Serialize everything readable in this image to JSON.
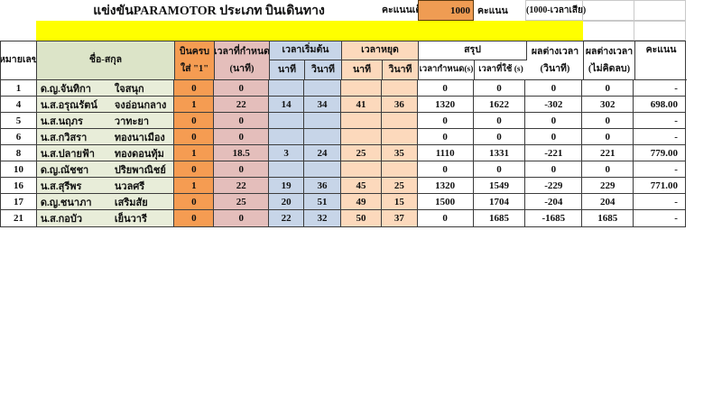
{
  "title_bar": {
    "title": "แข่งขันPARAMOTOR ประเภท บินเดินทาง",
    "full_score_label": "คะแนนเต็ม",
    "full_score_value": "1000",
    "score_unit": "คะแนน",
    "formula_note": "(1000-เวลาเสีย)"
  },
  "colors": {
    "highlight_band": "#ffff00",
    "complete_column": "#f59c52",
    "time_set_column": "#e4bebb",
    "start_column": "#c7d5e8",
    "stop_column": "#fcd9bc",
    "name_column": "#e8edd9",
    "full_score_cell": "#ef9c53"
  },
  "table": {
    "headers": {
      "number": "หมายเลข",
      "name": "ชื่อ-สกุล",
      "complete_line1": "บินครบ",
      "complete_line2": "ใส่ \"1\"",
      "time_set_line1": "เวลาที่กำหนด",
      "time_set_line2": "(นาที)",
      "start_time": "เวลาเริ่มต้น",
      "stop_time": "เวลาหยุด",
      "minute": "นาที",
      "second": "วินาที",
      "summary": "สรุป",
      "summary_set": "เวลากำหนด(s)",
      "summary_used": "เวลาที่ใช้ (s)",
      "diff_line1": "ผลต่างเวลา",
      "diff_line2": "(วินาที)",
      "diff_abs_line1": "ผลต่างเวลา",
      "diff_abs_line2": "(ไม่คิดลบ)",
      "score": "คะแนน"
    },
    "rows": [
      {
        "no": "1",
        "first": "ด.ญ.จันทิกา",
        "last": "ใจสนุก",
        "fly": "0",
        "set": "0",
        "smin": "",
        "ssec": "",
        "pmin": "",
        "psec": "",
        "sum_set": "0",
        "sum_used": "0",
        "diff": "0",
        "diffabs": "0",
        "score": "-"
      },
      {
        "no": "4",
        "first": "น.ส.อรุณรัตน์",
        "last": "จงอ่อนกลาง",
        "fly": "1",
        "set": "22",
        "smin": "14",
        "ssec": "34",
        "pmin": "41",
        "psec": "36",
        "sum_set": "1320",
        "sum_used": "1622",
        "diff": "-302",
        "diffabs": "302",
        "score": "698.00"
      },
      {
        "no": "5",
        "first": "น.ส.นฤภร",
        "last": "วาทะยา",
        "fly": "0",
        "set": "0",
        "smin": "",
        "ssec": "",
        "pmin": "",
        "psec": "",
        "sum_set": "0",
        "sum_used": "0",
        "diff": "0",
        "diffabs": "0",
        "score": "-"
      },
      {
        "no": "6",
        "first": "น.ส.กวิสรา",
        "last": "ทองนาเมือง",
        "fly": "0",
        "set": "0",
        "smin": "",
        "ssec": "",
        "pmin": "",
        "psec": "",
        "sum_set": "0",
        "sum_used": "0",
        "diff": "0",
        "diffabs": "0",
        "score": "-"
      },
      {
        "no": "8",
        "first": "น.ส.ปลายฟ้า",
        "last": "ทองดอนทุ้ม",
        "fly": "1",
        "set": "18.5",
        "smin": "3",
        "ssec": "24",
        "pmin": "25",
        "psec": "35",
        "sum_set": "1110",
        "sum_used": "1331",
        "diff": "-221",
        "diffabs": "221",
        "score": "779.00"
      },
      {
        "no": "10",
        "first": "ด.ญ.ณัชชา",
        "last": "ปริยพาณิชย์",
        "fly": "0",
        "set": "0",
        "smin": "",
        "ssec": "",
        "pmin": "",
        "psec": "",
        "sum_set": "0",
        "sum_used": "0",
        "diff": "0",
        "diffabs": "0",
        "score": "-"
      },
      {
        "no": "16",
        "first": "น.ส.สุรีพร",
        "last": "นวลศรี",
        "fly": "1",
        "set": "22",
        "smin": "19",
        "ssec": "36",
        "pmin": "45",
        "psec": "25",
        "sum_set": "1320",
        "sum_used": "1549",
        "diff": "-229",
        "diffabs": "229",
        "score": "771.00"
      },
      {
        "no": "17",
        "first": "ด.ญ.ชนาภา",
        "last": "เสริมสัย",
        "fly": "0",
        "set": "25",
        "smin": "20",
        "ssec": "51",
        "pmin": "49",
        "psec": "15",
        "sum_set": "1500",
        "sum_used": "1704",
        "diff": "-204",
        "diffabs": "204",
        "score": "-"
      },
      {
        "no": "21",
        "first": "น.ส.กอบัว",
        "last": "เย็นวารี",
        "fly": "0",
        "set": "0",
        "smin": "22",
        "ssec": "32",
        "pmin": "50",
        "psec": "37",
        "sum_set": "0",
        "sum_used": "1685",
        "diff": "-1685",
        "diffabs": "1685",
        "score": "-"
      }
    ]
  }
}
